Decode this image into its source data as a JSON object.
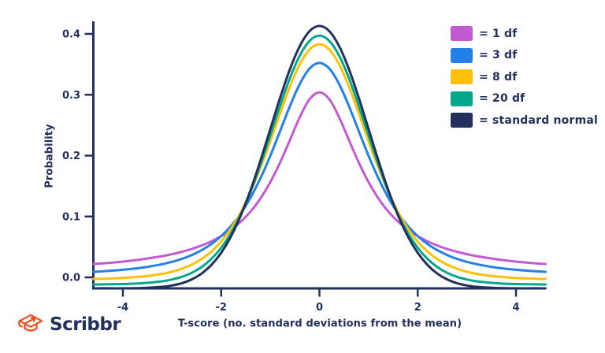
{
  "page": {
    "background_color": "#ffffff"
  },
  "branding": {
    "logo_text": "Scribbr",
    "logo_text_color": "#232f5d",
    "logo_icon": "graduation-cap",
    "logo_icon_color": "#f04e23"
  },
  "chart_data": {
    "type": "line",
    "title": "",
    "xlabel": "T-score (no. standard deviations from the mean)",
    "ylabel": "Probability",
    "xlim": [
      -4.6,
      4.6
    ],
    "ylim": [
      -0.02,
      0.45
    ],
    "xticks": [
      -4,
      -2,
      0,
      2,
      4
    ],
    "xtick_labels": [
      "-4",
      "-2",
      "0",
      "2",
      "4"
    ],
    "yticks": [
      0,
      0.1,
      0.2,
      0.3,
      0.4
    ],
    "ytick_labels": [
      "0.0",
      "0.1",
      "0.2",
      "0.3",
      "0.4"
    ],
    "grid": false,
    "legend_position": "top-right",
    "axis_color": "#232f5d",
    "label_color": "#232f5d",
    "x": [
      -4.6,
      -4.4,
      -4.0,
      -3.6,
      -3.2,
      -3.0,
      -2.8,
      -2.6,
      -2.4,
      -2.2,
      -2.0,
      -1.8,
      -1.6,
      -1.4,
      -1.2,
      -1.0,
      -0.8,
      -0.6,
      -0.4,
      -0.2,
      0,
      0.2,
      0.4,
      0.6,
      0.8,
      1.0,
      1.2,
      1.4,
      1.6,
      1.8,
      2.0,
      2.2,
      2.4,
      2.6,
      2.8,
      3.0,
      3.2,
      3.6,
      4.0,
      4.4,
      4.6
    ],
    "series": [
      {
        "name": "t-distribution-1-df",
        "legend_label": "= 1 df",
        "df": 1,
        "color": "#c25ad2",
        "values": [
          0.0144,
          0.0156,
          0.0187,
          0.0228,
          0.0283,
          0.0318,
          0.036,
          0.041,
          0.0471,
          0.0545,
          0.0637,
          0.0751,
          0.0894,
          0.1075,
          0.1304,
          0.1592,
          0.1941,
          0.234,
          0.2744,
          0.3061,
          0.3183,
          0.3061,
          0.2744,
          0.234,
          0.1941,
          0.1592,
          0.1304,
          0.1075,
          0.0894,
          0.0751,
          0.0637,
          0.0545,
          0.0471,
          0.041,
          0.036,
          0.0318,
          0.0283,
          0.0228,
          0.0187,
          0.0156,
          0.0144
        ]
      },
      {
        "name": "t-distribution-3-df",
        "legend_label": "= 3 df",
        "df": 3,
        "color": "#2380e8",
        "values": [
          0.0057,
          0.0066,
          0.0092,
          0.013,
          0.0189,
          0.023,
          0.0282,
          0.0347,
          0.0431,
          0.0538,
          0.0675,
          0.085,
          0.107,
          0.1345,
          0.1678,
          0.2067,
          0.2497,
          0.293,
          0.3313,
          0.3579,
          0.3676,
          0.3579,
          0.3313,
          0.293,
          0.2497,
          0.2067,
          0.1678,
          0.1345,
          0.107,
          0.085,
          0.0675,
          0.0538,
          0.0431,
          0.0347,
          0.0282,
          0.023,
          0.0189,
          0.013,
          0.0092,
          0.0066,
          0.0057
        ]
      },
      {
        "name": "t-distribution-8-df",
        "legend_label": "= 8 df",
        "df": 8,
        "color": "#ffc00a",
        "values": [
          0.0011,
          0.0015,
          0.0028,
          0.0051,
          0.0095,
          0.013,
          0.0179,
          0.0246,
          0.0337,
          0.046,
          0.0624,
          0.0837,
          0.1109,
          0.1443,
          0.1836,
          0.2276,
          0.2735,
          0.3172,
          0.3537,
          0.3781,
          0.3867,
          0.3781,
          0.3537,
          0.3172,
          0.2735,
          0.2276,
          0.1836,
          0.1443,
          0.1109,
          0.0837,
          0.0624,
          0.046,
          0.0337,
          0.0246,
          0.0179,
          0.013,
          0.0095,
          0.0051,
          0.0028,
          0.0015,
          0.0011
        ]
      },
      {
        "name": "t-distribution-20-df",
        "legend_label": "= 20 df",
        "df": 20,
        "color": "#04a78c",
        "values": [
          0.0002,
          0.0003,
          0.0008,
          0.0021,
          0.0051,
          0.008,
          0.0122,
          0.0185,
          0.0276,
          0.0405,
          0.0581,
          0.0815,
          0.1112,
          0.1476,
          0.1899,
          0.2361,
          0.283,
          0.3267,
          0.3624,
          0.3858,
          0.394,
          0.3858,
          0.3624,
          0.3267,
          0.283,
          0.2361,
          0.1899,
          0.1476,
          0.1112,
          0.0815,
          0.0581,
          0.0405,
          0.0276,
          0.0185,
          0.0122,
          0.008,
          0.0051,
          0.0021,
          0.0008,
          0.0003,
          0.0002
        ]
      },
      {
        "name": "standard-normal",
        "legend_label": "= standard normal",
        "df": null,
        "color": "#232f5d",
        "values": [
          0.0,
          0.0001,
          0.0001,
          0.0006,
          0.0024,
          0.0044,
          0.0079,
          0.0136,
          0.0224,
          0.0355,
          0.054,
          0.079,
          0.1109,
          0.1497,
          0.1942,
          0.242,
          0.2897,
          0.3332,
          0.3683,
          0.391,
          0.3989,
          0.391,
          0.3683,
          0.3332,
          0.2897,
          0.242,
          0.1942,
          0.1497,
          0.1109,
          0.079,
          0.054,
          0.0355,
          0.0224,
          0.0136,
          0.0079,
          0.0044,
          0.0024,
          0.0006,
          0.0001,
          0.0001,
          0.0
        ]
      }
    ],
    "style": {
      "line_width": 3,
      "display_scale": [
        0.928,
        0.948,
        1.0,
        1.038,
        1.081
      ],
      "display_offset": [
        0.0086,
        0.0037,
        -0.0037,
        -0.0118,
        -0.0181
      ]
    }
  }
}
